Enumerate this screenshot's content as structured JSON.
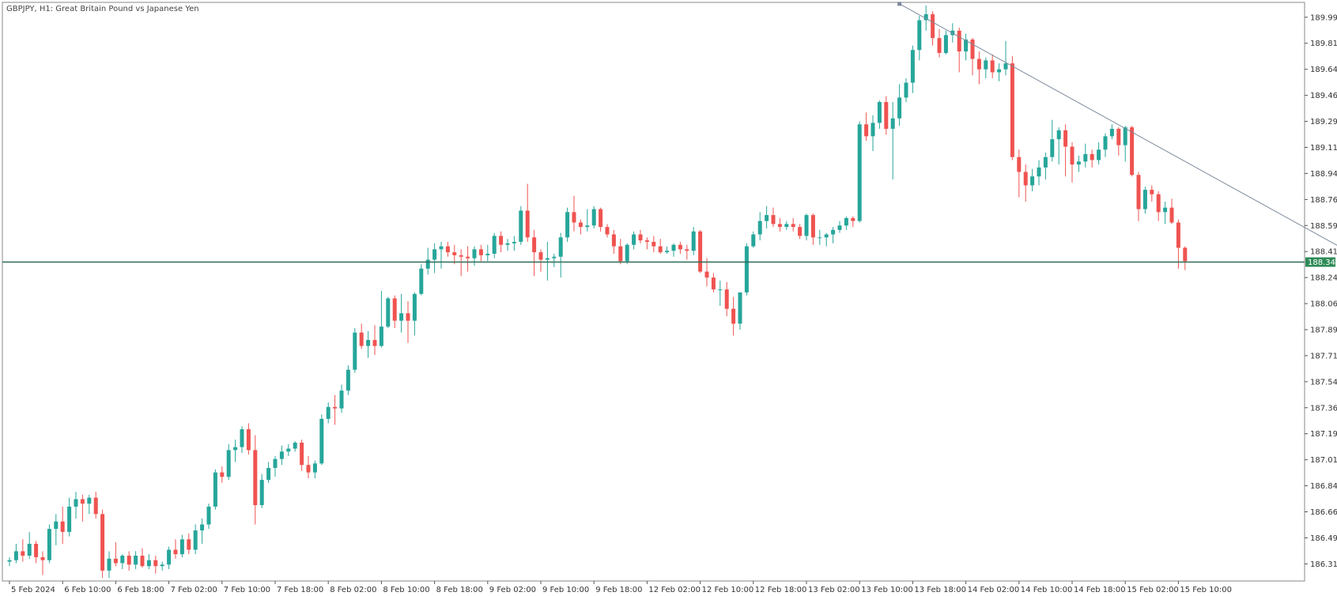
{
  "window": {
    "symbol_title": "GBPJPY, H1:  Great Britain Pound vs Japanese Yen"
  },
  "colors": {
    "bull": "#26a69a",
    "bear": "#ef5350",
    "price_line": "#2f6b57",
    "trendline": "#7d8a9a",
    "frame": "#8a8a8a",
    "price_label_bg": "#2e8b57"
  },
  "chart_data": {
    "type": "candlestick",
    "symbol": "GBPJPY",
    "timeframe": "H1",
    "title": "GBPJPY, H1:  Great Britain Pound vs Japanese Yen",
    "current_price": "188.344",
    "current_price_value": 188.344,
    "ylim": [
      186.2,
      190.09
    ],
    "y_ticks": [
      "189.990",
      "189.815",
      "189.640",
      "189.465",
      "189.290",
      "189.115",
      "188.940",
      "188.765",
      "188.590",
      "188.415",
      "188.240",
      "188.065",
      "187.890",
      "187.715",
      "187.540",
      "187.365",
      "187.190",
      "187.015",
      "186.840",
      "186.665",
      "186.490",
      "186.315"
    ],
    "x_ticks": [
      {
        "label": "5 Feb 2024",
        "index": 0
      },
      {
        "label": "6 Feb 10:00",
        "index": 8
      },
      {
        "label": "6 Feb 18:00",
        "index": 16
      },
      {
        "label": "7 Feb 02:00",
        "index": 24
      },
      {
        "label": "7 Feb 10:00",
        "index": 32
      },
      {
        "label": "7 Feb 18:00",
        "index": 40
      },
      {
        "label": "8 Feb 02:00",
        "index": 48
      },
      {
        "label": "8 Feb 10:00",
        "index": 56
      },
      {
        "label": "8 Feb 18:00",
        "index": 64
      },
      {
        "label": "9 Feb 02:00",
        "index": 72
      },
      {
        "label": "9 Feb 10:00",
        "index": 80
      },
      {
        "label": "9 Feb 18:00",
        "index": 88
      },
      {
        "label": "12 Feb 02:00",
        "index": 96
      },
      {
        "label": "12 Feb 10:00",
        "index": 104
      },
      {
        "label": "12 Feb 18:00",
        "index": 112
      },
      {
        "label": "13 Feb 02:00",
        "index": 120
      },
      {
        "label": "13 Feb 10:00",
        "index": 128
      },
      {
        "label": "13 Feb 18:00",
        "index": 136
      },
      {
        "label": "14 Feb 02:00",
        "index": 144
      },
      {
        "label": "14 Feb 10:00",
        "index": 152
      },
      {
        "label": "14 Feb 18:00",
        "index": 160
      },
      {
        "label": "15 Feb 02:00",
        "index": 168
      },
      {
        "label": "15 Feb 10:00",
        "index": 176
      }
    ],
    "candles": [
      [
        186.33,
        186.36,
        186.3,
        186.34
      ],
      [
        186.34,
        186.45,
        186.32,
        186.4
      ],
      [
        186.4,
        186.48,
        186.33,
        186.37
      ],
      [
        186.37,
        186.53,
        186.35,
        186.45
      ],
      [
        186.45,
        186.47,
        186.32,
        186.36
      ],
      [
        186.36,
        186.4,
        186.24,
        186.34
      ],
      [
        186.34,
        186.58,
        186.32,
        186.55
      ],
      [
        186.55,
        186.65,
        186.44,
        186.6
      ],
      [
        186.6,
        186.7,
        186.45,
        186.53
      ],
      [
        186.53,
        186.76,
        186.5,
        186.7
      ],
      [
        186.7,
        186.8,
        186.62,
        186.75
      ],
      [
        186.75,
        186.78,
        186.6,
        186.72
      ],
      [
        186.72,
        186.78,
        186.65,
        186.76
      ],
      [
        186.76,
        186.8,
        186.62,
        186.65
      ],
      [
        186.65,
        186.68,
        186.22,
        186.27
      ],
      [
        186.27,
        186.4,
        186.22,
        186.35
      ],
      [
        186.35,
        186.46,
        186.3,
        186.32
      ],
      [
        186.32,
        186.38,
        186.28,
        186.37
      ],
      [
        186.37,
        186.4,
        186.27,
        186.31
      ],
      [
        186.31,
        186.4,
        186.28,
        186.37
      ],
      [
        186.37,
        186.42,
        186.29,
        186.3
      ],
      [
        186.3,
        186.38,
        186.28,
        186.34
      ],
      [
        186.34,
        186.37,
        186.25,
        186.3
      ],
      [
        186.3,
        186.33,
        186.27,
        186.31
      ],
      [
        186.31,
        186.43,
        186.28,
        186.41
      ],
      [
        186.41,
        186.48,
        186.35,
        186.38
      ],
      [
        186.38,
        186.51,
        186.36,
        186.48
      ],
      [
        186.48,
        186.52,
        186.38,
        186.41
      ],
      [
        186.41,
        186.58,
        186.38,
        186.54
      ],
      [
        186.54,
        186.62,
        186.45,
        186.58
      ],
      [
        186.58,
        186.72,
        186.55,
        186.7
      ],
      [
        186.7,
        186.95,
        186.68,
        186.93
      ],
      [
        186.93,
        186.97,
        186.86,
        186.9
      ],
      [
        186.9,
        187.12,
        186.88,
        187.08
      ],
      [
        187.08,
        187.15,
        187.0,
        187.1
      ],
      [
        187.1,
        187.24,
        187.06,
        187.22
      ],
      [
        187.22,
        187.26,
        187.05,
        187.08
      ],
      [
        187.08,
        187.18,
        186.58,
        186.71
      ],
      [
        186.71,
        186.92,
        186.69,
        186.88
      ],
      [
        186.88,
        187.0,
        186.86,
        186.96
      ],
      [
        186.96,
        187.04,
        186.9,
        187.02
      ],
      [
        187.02,
        187.11,
        186.98,
        187.07
      ],
      [
        187.07,
        187.12,
        187.04,
        187.09
      ],
      [
        187.09,
        187.14,
        187.07,
        187.13
      ],
      [
        187.13,
        187.15,
        186.94,
        186.98
      ],
      [
        186.98,
        187.04,
        186.89,
        186.93
      ],
      [
        186.93,
        187.01,
        186.89,
        186.99
      ],
      [
        186.99,
        187.32,
        186.98,
        187.29
      ],
      [
        187.29,
        187.4,
        187.26,
        187.37
      ],
      [
        187.37,
        187.45,
        187.25,
        187.36
      ],
      [
        187.36,
        187.52,
        187.33,
        187.48
      ],
      [
        187.48,
        187.65,
        187.45,
        187.62
      ],
      [
        187.62,
        187.9,
        187.6,
        187.87
      ],
      [
        187.87,
        187.93,
        187.76,
        187.78
      ],
      [
        187.78,
        187.88,
        187.7,
        187.82
      ],
      [
        187.82,
        187.92,
        187.72,
        187.78
      ],
      [
        187.78,
        188.15,
        187.77,
        187.91
      ],
      [
        187.91,
        188.11,
        187.9,
        188.1
      ],
      [
        188.1,
        188.12,
        187.9,
        187.95
      ],
      [
        187.95,
        188.13,
        187.87,
        188.0
      ],
      [
        188.0,
        188.08,
        187.8,
        187.95
      ],
      [
        187.95,
        188.14,
        187.85,
        188.13
      ],
      [
        188.13,
        188.33,
        188.12,
        188.3
      ],
      [
        188.3,
        188.44,
        188.26,
        188.36
      ],
      [
        188.36,
        188.47,
        188.27,
        188.43
      ],
      [
        188.43,
        188.48,
        188.3,
        188.45
      ],
      [
        188.45,
        188.48,
        188.38,
        188.41
      ],
      [
        188.41,
        188.46,
        188.33,
        188.39
      ],
      [
        188.39,
        188.43,
        188.25,
        188.38
      ],
      [
        188.38,
        188.45,
        188.28,
        188.37
      ],
      [
        188.37,
        188.45,
        188.32,
        188.43
      ],
      [
        188.43,
        188.46,
        188.35,
        188.39
      ],
      [
        188.39,
        188.46,
        188.35,
        188.4
      ],
      [
        188.4,
        188.54,
        188.37,
        188.52
      ],
      [
        188.52,
        188.55,
        188.41,
        188.46
      ],
      [
        188.46,
        188.5,
        188.42,
        188.47
      ],
      [
        188.47,
        188.52,
        188.42,
        188.48
      ],
      [
        188.48,
        188.72,
        188.46,
        188.69
      ],
      [
        188.69,
        188.87,
        188.48,
        188.51
      ],
      [
        188.51,
        188.56,
        188.25,
        188.41
      ],
      [
        188.41,
        188.43,
        188.28,
        188.36
      ],
      [
        188.36,
        188.48,
        188.22,
        188.37
      ],
      [
        188.37,
        188.4,
        188.31,
        188.38
      ],
      [
        188.38,
        188.54,
        188.24,
        188.51
      ],
      [
        188.51,
        188.71,
        188.48,
        188.68
      ],
      [
        188.68,
        188.79,
        188.55,
        188.61
      ],
      [
        188.61,
        188.63,
        188.53,
        188.58
      ],
      [
        188.58,
        188.7,
        188.55,
        188.59
      ],
      [
        188.59,
        188.72,
        188.57,
        188.7
      ],
      [
        188.7,
        188.71,
        188.55,
        188.58
      ],
      [
        188.58,
        188.6,
        188.51,
        188.53
      ],
      [
        188.53,
        188.56,
        188.4,
        188.45
      ],
      [
        188.45,
        188.5,
        188.33,
        188.35
      ],
      [
        188.35,
        188.47,
        188.33,
        188.46
      ],
      [
        188.46,
        188.55,
        188.43,
        188.53
      ],
      [
        188.53,
        188.56,
        188.47,
        188.49
      ],
      [
        188.49,
        188.51,
        188.43,
        188.48
      ],
      [
        188.48,
        188.52,
        188.41,
        188.45
      ],
      [
        188.45,
        188.5,
        188.4,
        188.41
      ],
      [
        188.41,
        188.45,
        188.4,
        188.42
      ],
      [
        188.42,
        188.47,
        188.38,
        188.46
      ],
      [
        188.46,
        188.48,
        188.4,
        188.43
      ],
      [
        188.43,
        188.46,
        188.36,
        188.42
      ],
      [
        188.42,
        188.58,
        188.39,
        188.55
      ],
      [
        188.55,
        188.56,
        188.27,
        188.28
      ],
      [
        188.28,
        188.37,
        188.18,
        188.24
      ],
      [
        188.24,
        188.27,
        188.14,
        188.16
      ],
      [
        188.16,
        188.22,
        188.05,
        188.16
      ],
      [
        188.16,
        188.21,
        187.98,
        188.03
      ],
      [
        188.03,
        188.11,
        187.85,
        187.93
      ],
      [
        187.93,
        188.14,
        187.89,
        188.14
      ],
      [
        188.14,
        188.47,
        188.12,
        188.45
      ],
      [
        188.45,
        188.55,
        188.44,
        188.53
      ],
      [
        188.53,
        188.68,
        188.49,
        188.62
      ],
      [
        188.62,
        188.72,
        188.57,
        188.66
      ],
      [
        188.66,
        188.71,
        188.58,
        188.6
      ],
      [
        188.6,
        188.64,
        188.55,
        188.58
      ],
      [
        188.58,
        188.62,
        188.56,
        188.6
      ],
      [
        188.6,
        188.64,
        188.55,
        188.58
      ],
      [
        188.58,
        188.6,
        188.5,
        188.52
      ],
      [
        188.52,
        188.67,
        188.49,
        188.66
      ],
      [
        188.66,
        188.67,
        188.46,
        188.51
      ],
      [
        188.51,
        188.56,
        188.46,
        188.51
      ],
      [
        188.51,
        188.54,
        188.45,
        188.53
      ],
      [
        188.53,
        188.58,
        188.47,
        188.56
      ],
      [
        188.56,
        188.62,
        188.54,
        188.59
      ],
      [
        188.59,
        188.65,
        188.56,
        188.64
      ],
      [
        188.64,
        188.65,
        188.58,
        188.62
      ],
      [
        188.62,
        189.29,
        188.61,
        189.27
      ],
      [
        189.27,
        189.35,
        189.16,
        189.19
      ],
      [
        189.19,
        189.33,
        189.09,
        189.28
      ],
      [
        189.28,
        189.43,
        189.24,
        189.42
      ],
      [
        189.42,
        189.46,
        189.2,
        189.24
      ],
      [
        189.24,
        189.42,
        188.9,
        189.31
      ],
      [
        189.31,
        189.54,
        189.26,
        189.45
      ],
      [
        189.45,
        189.58,
        189.42,
        189.55
      ],
      [
        189.55,
        189.8,
        189.48,
        189.77
      ],
      [
        189.77,
        190.0,
        189.7,
        189.97
      ],
      [
        189.97,
        190.07,
        189.9,
        190.01
      ],
      [
        190.01,
        190.03,
        189.8,
        189.85
      ],
      [
        189.85,
        189.91,
        189.72,
        189.75
      ],
      [
        189.75,
        189.9,
        189.74,
        189.87
      ],
      [
        189.87,
        189.95,
        189.82,
        189.9
      ],
      [
        189.9,
        189.92,
        189.62,
        189.76
      ],
      [
        189.76,
        189.88,
        189.7,
        189.84
      ],
      [
        189.84,
        189.85,
        189.6,
        189.71
      ],
      [
        189.71,
        189.76,
        189.54,
        189.64
      ],
      [
        189.64,
        189.72,
        189.58,
        189.7
      ],
      [
        189.7,
        189.74,
        189.58,
        189.62
      ],
      [
        189.62,
        189.68,
        189.56,
        189.64
      ],
      [
        189.64,
        189.83,
        189.6,
        189.68
      ],
      [
        189.68,
        189.73,
        189.03,
        189.05
      ],
      [
        189.05,
        189.1,
        188.78,
        188.95
      ],
      [
        188.95,
        189.0,
        188.75,
        188.86
      ],
      [
        188.86,
        188.97,
        188.82,
        188.92
      ],
      [
        188.92,
        189.03,
        188.86,
        188.98
      ],
      [
        188.98,
        189.08,
        188.9,
        189.05
      ],
      [
        189.05,
        189.3,
        189.02,
        189.17
      ],
      [
        189.17,
        189.25,
        189.0,
        189.23
      ],
      [
        189.23,
        189.27,
        188.92,
        189.12
      ],
      [
        189.12,
        189.15,
        188.88,
        189.0
      ],
      [
        189.0,
        189.06,
        188.95,
        189.02
      ],
      [
        189.02,
        189.14,
        188.98,
        189.07
      ],
      [
        189.07,
        189.1,
        188.98,
        189.03
      ],
      [
        189.03,
        189.15,
        189.0,
        189.1
      ],
      [
        189.1,
        189.21,
        189.05,
        189.19
      ],
      [
        189.19,
        189.27,
        189.17,
        189.24
      ],
      [
        189.24,
        189.25,
        189.06,
        189.13
      ],
      [
        189.13,
        189.26,
        189.02,
        189.25
      ],
      [
        189.25,
        189.26,
        188.92,
        188.93
      ],
      [
        188.93,
        188.95,
        188.62,
        188.7
      ],
      [
        188.7,
        188.85,
        188.67,
        188.83
      ],
      [
        188.83,
        188.86,
        188.75,
        188.8
      ],
      [
        188.8,
        188.82,
        188.62,
        188.68
      ],
      [
        188.68,
        188.75,
        188.6,
        188.71
      ],
      [
        188.71,
        188.77,
        188.6,
        188.61
      ],
      [
        188.61,
        188.63,
        188.3,
        188.44
      ],
      [
        188.44,
        188.45,
        188.29,
        188.35
      ]
    ],
    "trendline": {
      "from": {
        "index": 134,
        "price": 190.08
      },
      "to": {
        "index": 203,
        "price": 188.38
      }
    }
  }
}
